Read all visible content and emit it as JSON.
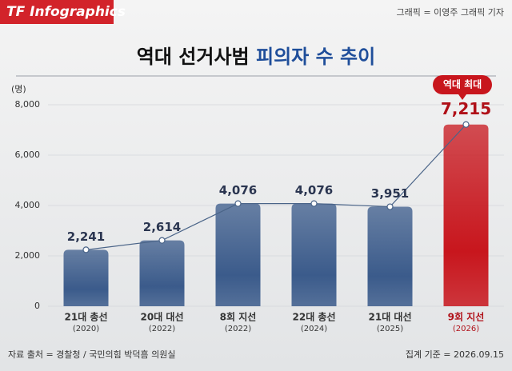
{
  "header": {
    "brand": "TF Infographics",
    "credit": "그래픽 = 이영주 그래픽 기자"
  },
  "chart_data": {
    "type": "bar",
    "title": {
      "plain": "역대 선거사범",
      "highlight": "피의자 수 추이"
    },
    "y_unit": "(명)",
    "categories": [
      "21대 총선",
      "20대 대선",
      "8회 지선",
      "22대 총선",
      "21대 대선",
      "9회 지선"
    ],
    "category_years": [
      "(2020)",
      "(2022)",
      "(2022)",
      "(2024)",
      "(2025)",
      "(2026)"
    ],
    "values": [
      2241,
      2614,
      4076,
      4076,
      3951,
      7215
    ],
    "value_labels": [
      "2,241",
      "2,614",
      "4,076",
      "4,076",
      "3,951",
      "7,215"
    ],
    "bar_colors": [
      "#3b5b8b",
      "#3b5b8b",
      "#3b5b8b",
      "#3b5b8b",
      "#3b5b8b",
      "#c8161d"
    ],
    "label_colors": [
      "#333333",
      "#333333",
      "#333333",
      "#333333",
      "#333333",
      "#b01018"
    ],
    "line_color": "#4a6488",
    "annotation": "역대 최대",
    "ylim": [
      0,
      8000
    ],
    "yticks": [
      0,
      {
        "value": 2000,
        "label": "2,000"
      },
      {
        "value": 4000,
        "label": "4,000"
      },
      {
        "value": 6000,
        "label": "6,000"
      },
      {
        "value": 8000,
        "label": "8,000"
      }
    ]
  },
  "footer": {
    "source": "자료 출처 = 경찰청 / 국민의힘 박덕흠 의원실",
    "date": "집계 기준 = 2026.09.15"
  }
}
